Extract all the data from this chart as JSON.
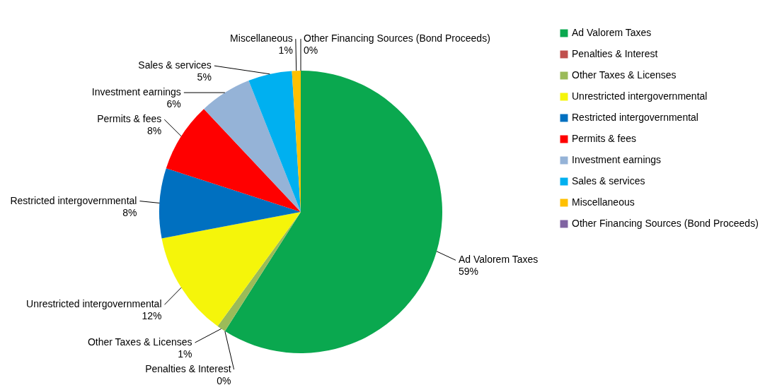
{
  "chart_data": {
    "type": "pie",
    "categories": [
      "Ad Valorem Taxes",
      "Penalties & Interest",
      "Other Taxes & Licenses",
      "Unrestricted intergovernmental",
      "Restricted intergovernmental",
      "Permits & fees",
      "Investment earnings",
      "Sales & services",
      "Miscellaneous",
      "Other Financing Sources (Bond Proceeds)"
    ],
    "values": [
      59,
      0,
      1,
      12,
      8,
      8,
      6,
      5,
      1,
      0
    ],
    "value_labels": [
      "59%",
      "0%",
      "1%",
      "12%",
      "8%",
      "8%",
      "6%",
      "5%",
      "1%",
      "0%"
    ],
    "colors": [
      "#0aa84f",
      "#c0504d",
      "#9bbb59",
      "#f5f50a",
      "#0070c0",
      "#ff0000",
      "#95b3d7",
      "#00b0f0",
      "#ffc000",
      "#8064a2"
    ],
    "legend": "right"
  }
}
